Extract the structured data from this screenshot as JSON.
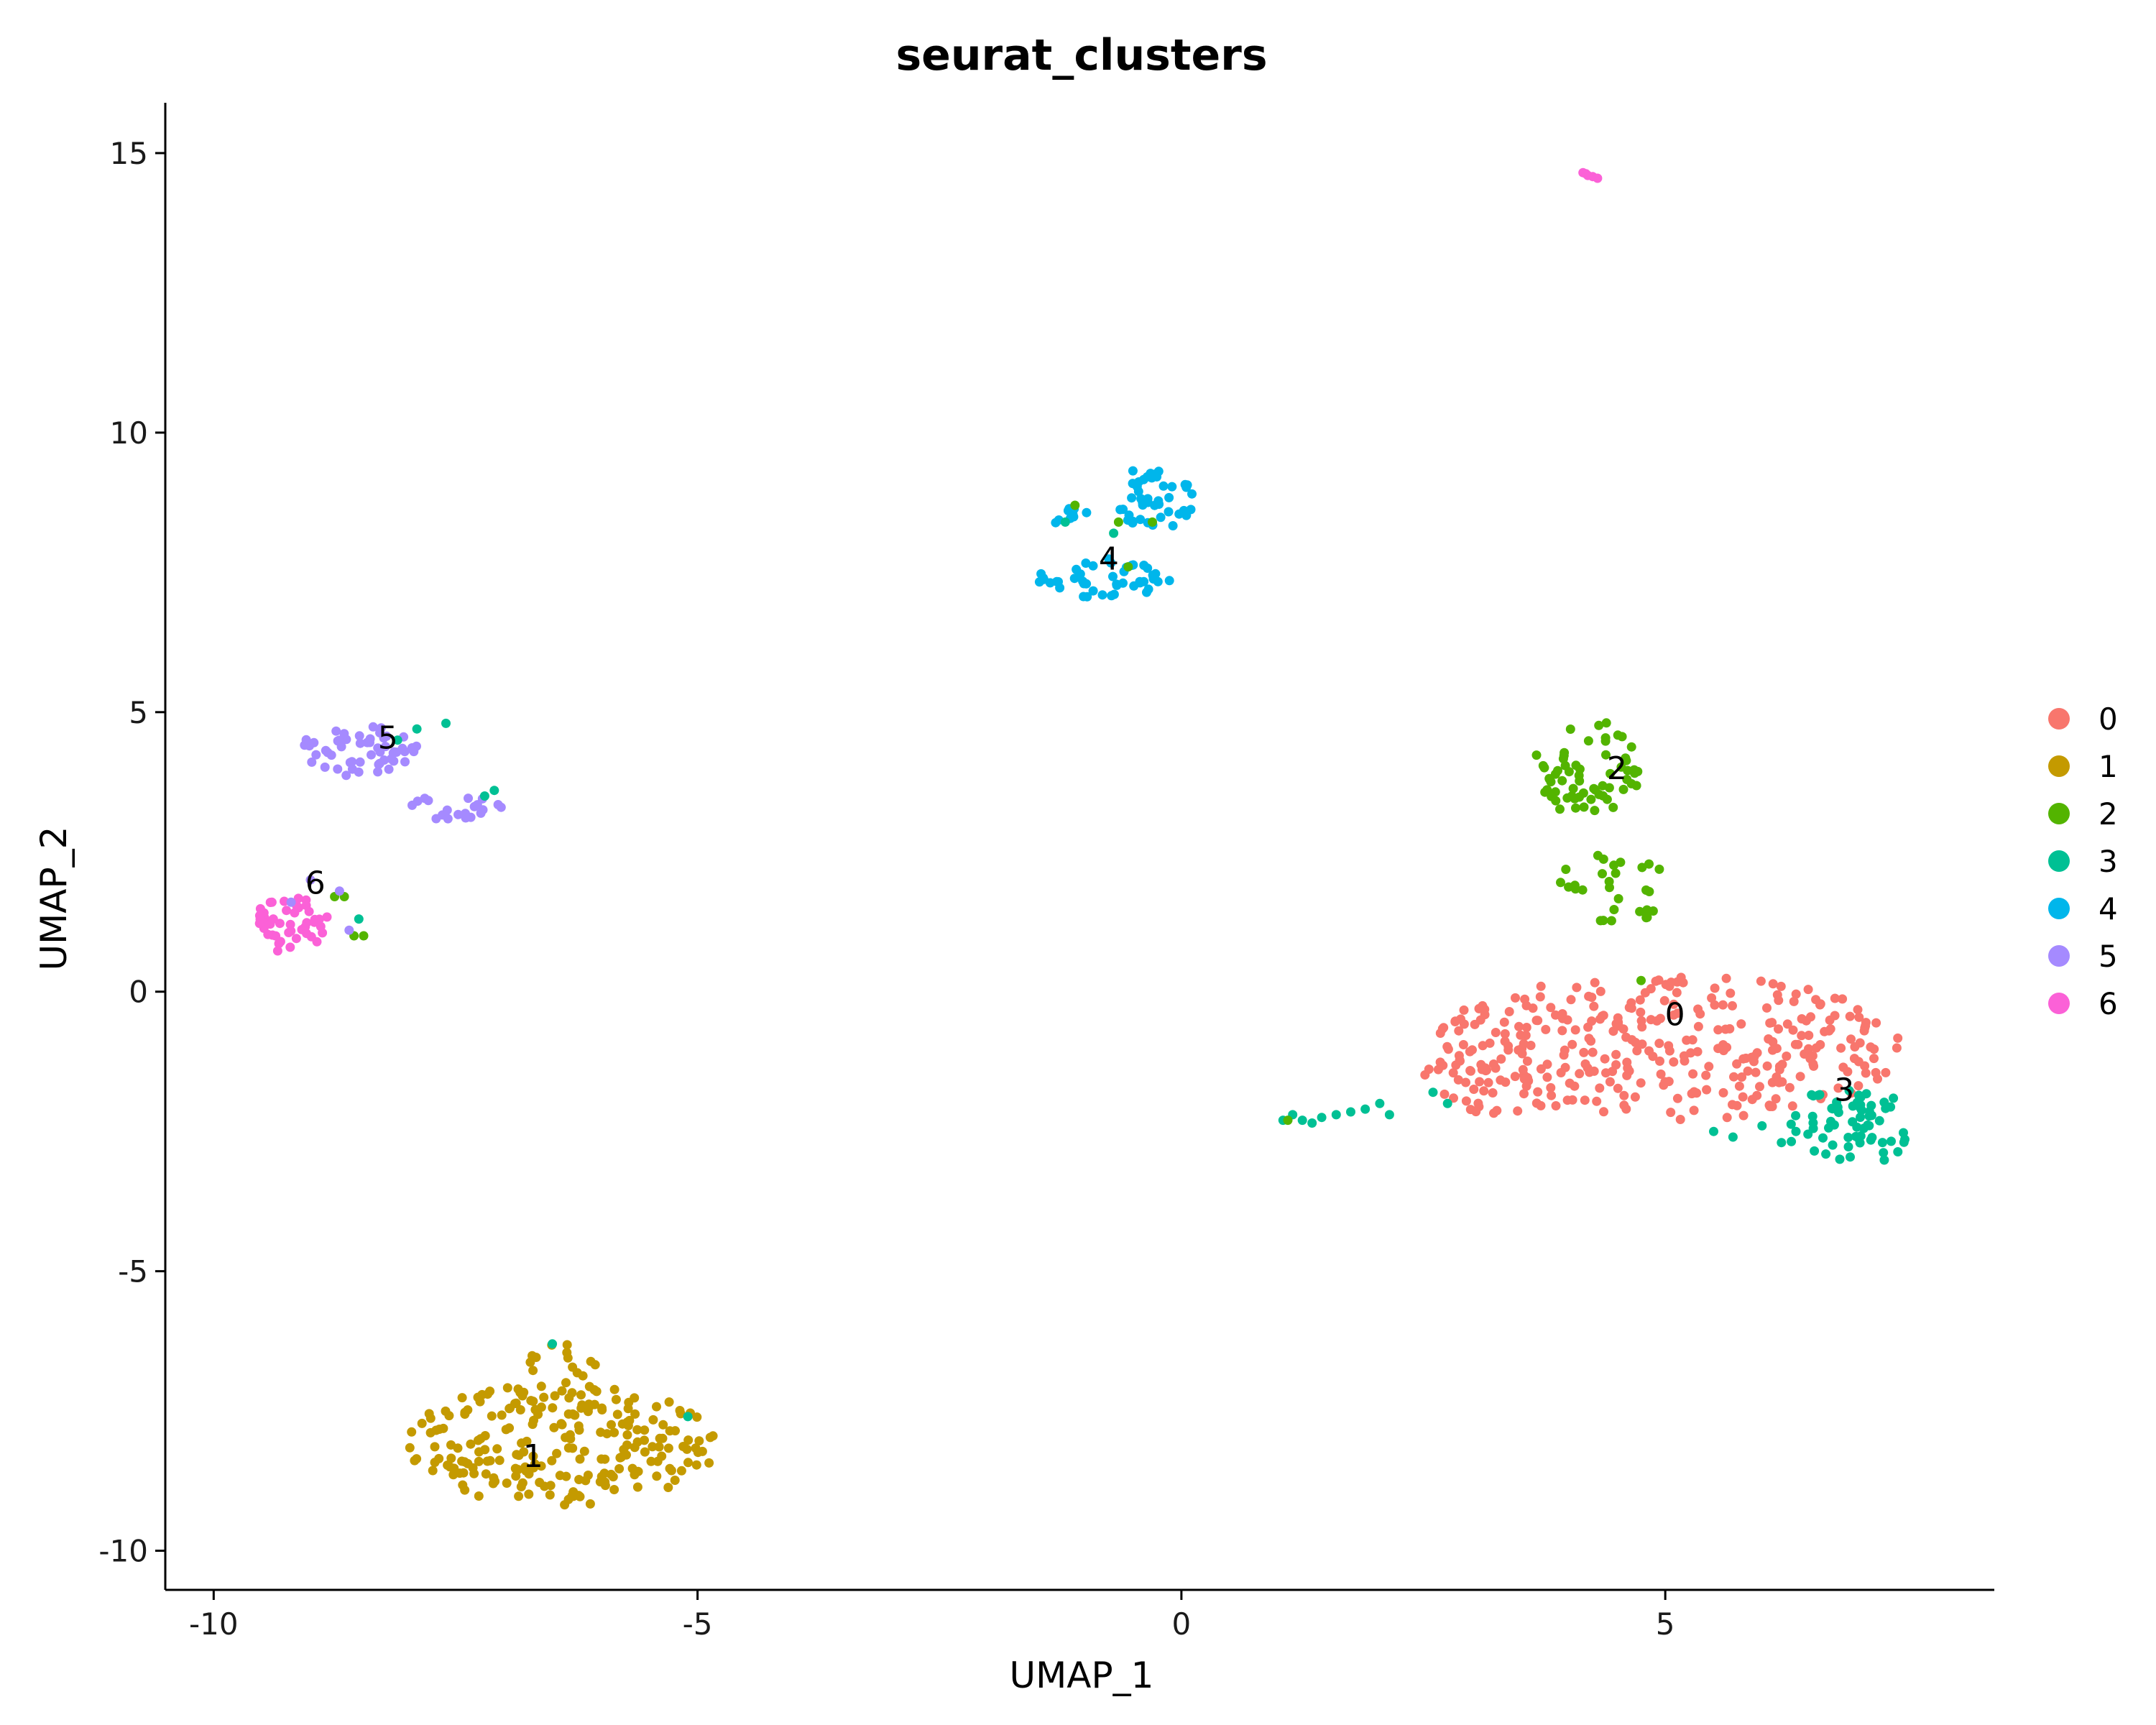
{
  "chart_data": {
    "type": "scatter",
    "title": "seurat_clusters",
    "xlabel": "UMAP_1",
    "ylabel": "UMAP_2",
    "xlim": [
      -10.5,
      8.4
    ],
    "ylim": [
      -10.7,
      15.9
    ],
    "xticks": [
      -10,
      -5,
      0,
      5
    ],
    "xtick_labels": [
      "-10",
      "-5",
      "0",
      "5"
    ],
    "yticks": [
      -10,
      -5,
      0,
      5,
      10,
      15
    ],
    "ytick_labels": [
      "-10",
      "-5",
      "0",
      "5",
      "10",
      "15"
    ],
    "grid": false,
    "legend_position": "right",
    "series": [
      {
        "name": "0",
        "color": "#F8766D",
        "label_pos": [
          5.1,
          -0.6
        ],
        "regions": [
          {
            "cx": 5.0,
            "cy": -1.0,
            "rx": 2.5,
            "ry": 1.3,
            "n": 330
          },
          {
            "cx": 3.1,
            "cy": -1.6,
            "rx": 0.6,
            "ry": 0.7,
            "n": 25
          }
        ]
      },
      {
        "name": "1",
        "color": "#C49A00",
        "label_pos": [
          -6.7,
          -8.5
        ],
        "regions": [
          {
            "cx": -6.4,
            "cy": -8.1,
            "rx": 1.6,
            "ry": 1.1,
            "n": 230
          },
          {
            "cx": -6.4,
            "cy": -6.6,
            "rx": 0.35,
            "ry": 0.4,
            "n": 14
          }
        ]
      },
      {
        "name": "2",
        "color": "#53B400",
        "label_pos": [
          4.5,
          3.8
        ],
        "regions": [
          {
            "cx": 4.2,
            "cy": 4.0,
            "rx": 0.55,
            "ry": 0.9,
            "n": 65
          },
          {
            "cx": 4.5,
            "cy": 1.9,
            "rx": 0.6,
            "ry": 0.7,
            "n": 30
          }
        ],
        "extra": [
          [
            -8.65,
            1.7
          ],
          [
            -8.55,
            1.0
          ],
          [
            -8.75,
            1.7
          ],
          [
            -8.45,
            1.0
          ],
          [
            -1.1,
            8.7
          ],
          [
            -0.65,
            8.4
          ],
          [
            4.75,
            0.2
          ],
          [
            -0.55,
            7.6
          ],
          [
            -0.3,
            8.4
          ],
          [
            1.1,
            -2.3
          ]
        ]
      },
      {
        "name": "3",
        "color": "#00C094",
        "label_pos": [
          6.85,
          -1.95
        ],
        "regions": [
          {
            "cx": 6.9,
            "cy": -2.4,
            "rx": 0.65,
            "ry": 0.75,
            "n": 65
          }
        ],
        "points": [
          [
            1.05,
            -2.3
          ],
          [
            1.15,
            -2.2
          ],
          [
            1.25,
            -2.3
          ],
          [
            1.35,
            -2.35
          ],
          [
            1.45,
            -2.25
          ],
          [
            1.6,
            -2.2
          ],
          [
            1.75,
            -2.15
          ],
          [
            1.9,
            -2.1
          ],
          [
            2.05,
            -2.0
          ],
          [
            2.15,
            -2.2
          ],
          [
            2.6,
            -1.8
          ],
          [
            2.75,
            -2.0
          ],
          [
            5.5,
            -2.5
          ],
          [
            5.7,
            -2.6
          ],
          [
            6.0,
            -2.4
          ],
          [
            6.2,
            -2.7
          ],
          [
            6.35,
            -2.5
          ]
        ],
        "extra": [
          [
            -7.9,
            4.7
          ],
          [
            -7.6,
            4.8
          ],
          [
            -8.1,
            4.5
          ],
          [
            -7.2,
            3.5
          ],
          [
            -7.1,
            3.6
          ],
          [
            -8.5,
            1.3
          ],
          [
            -6.5,
            -6.3
          ],
          [
            -5.1,
            -7.6
          ],
          [
            -1.2,
            8.4
          ],
          [
            -0.7,
            8.2
          ]
        ]
      },
      {
        "name": "4",
        "color": "#00B6EB",
        "label_pos": [
          -0.75,
          7.55
        ],
        "regions": [
          {
            "cx": -0.3,
            "cy": 8.8,
            "rx": 0.5,
            "ry": 0.6,
            "n": 45
          },
          {
            "cx": -0.8,
            "cy": 7.4,
            "rx": 0.7,
            "ry": 0.35,
            "n": 45
          },
          {
            "cx": -1.2,
            "cy": 8.5,
            "rx": 0.3,
            "ry": 0.15,
            "n": 10
          }
        ]
      },
      {
        "name": "5",
        "color": "#A58AFF",
        "label_pos": [
          -8.2,
          4.35
        ],
        "regions": [
          {
            "cx": -8.5,
            "cy": 4.3,
            "rx": 0.65,
            "ry": 0.45,
            "n": 55
          },
          {
            "cx": -7.5,
            "cy": 3.3,
            "rx": 0.5,
            "ry": 0.25,
            "n": 20
          }
        ],
        "extra": [
          [
            -9.0,
            2.0
          ],
          [
            -8.7,
            1.8
          ],
          [
            -9.2,
            1.6
          ],
          [
            -8.6,
            1.1
          ]
        ]
      },
      {
        "name": "6",
        "color": "#FB61D7",
        "label_pos": [
          -8.95,
          1.75
        ],
        "regions": [
          {
            "cx": -9.2,
            "cy": 1.2,
            "rx": 0.4,
            "ry": 0.55,
            "n": 45
          }
        ],
        "points": [
          [
            4.15,
            14.65
          ],
          [
            4.2,
            14.6
          ],
          [
            4.25,
            14.58
          ],
          [
            4.3,
            14.55
          ],
          [
            4.18,
            14.63
          ]
        ]
      }
    ]
  }
}
